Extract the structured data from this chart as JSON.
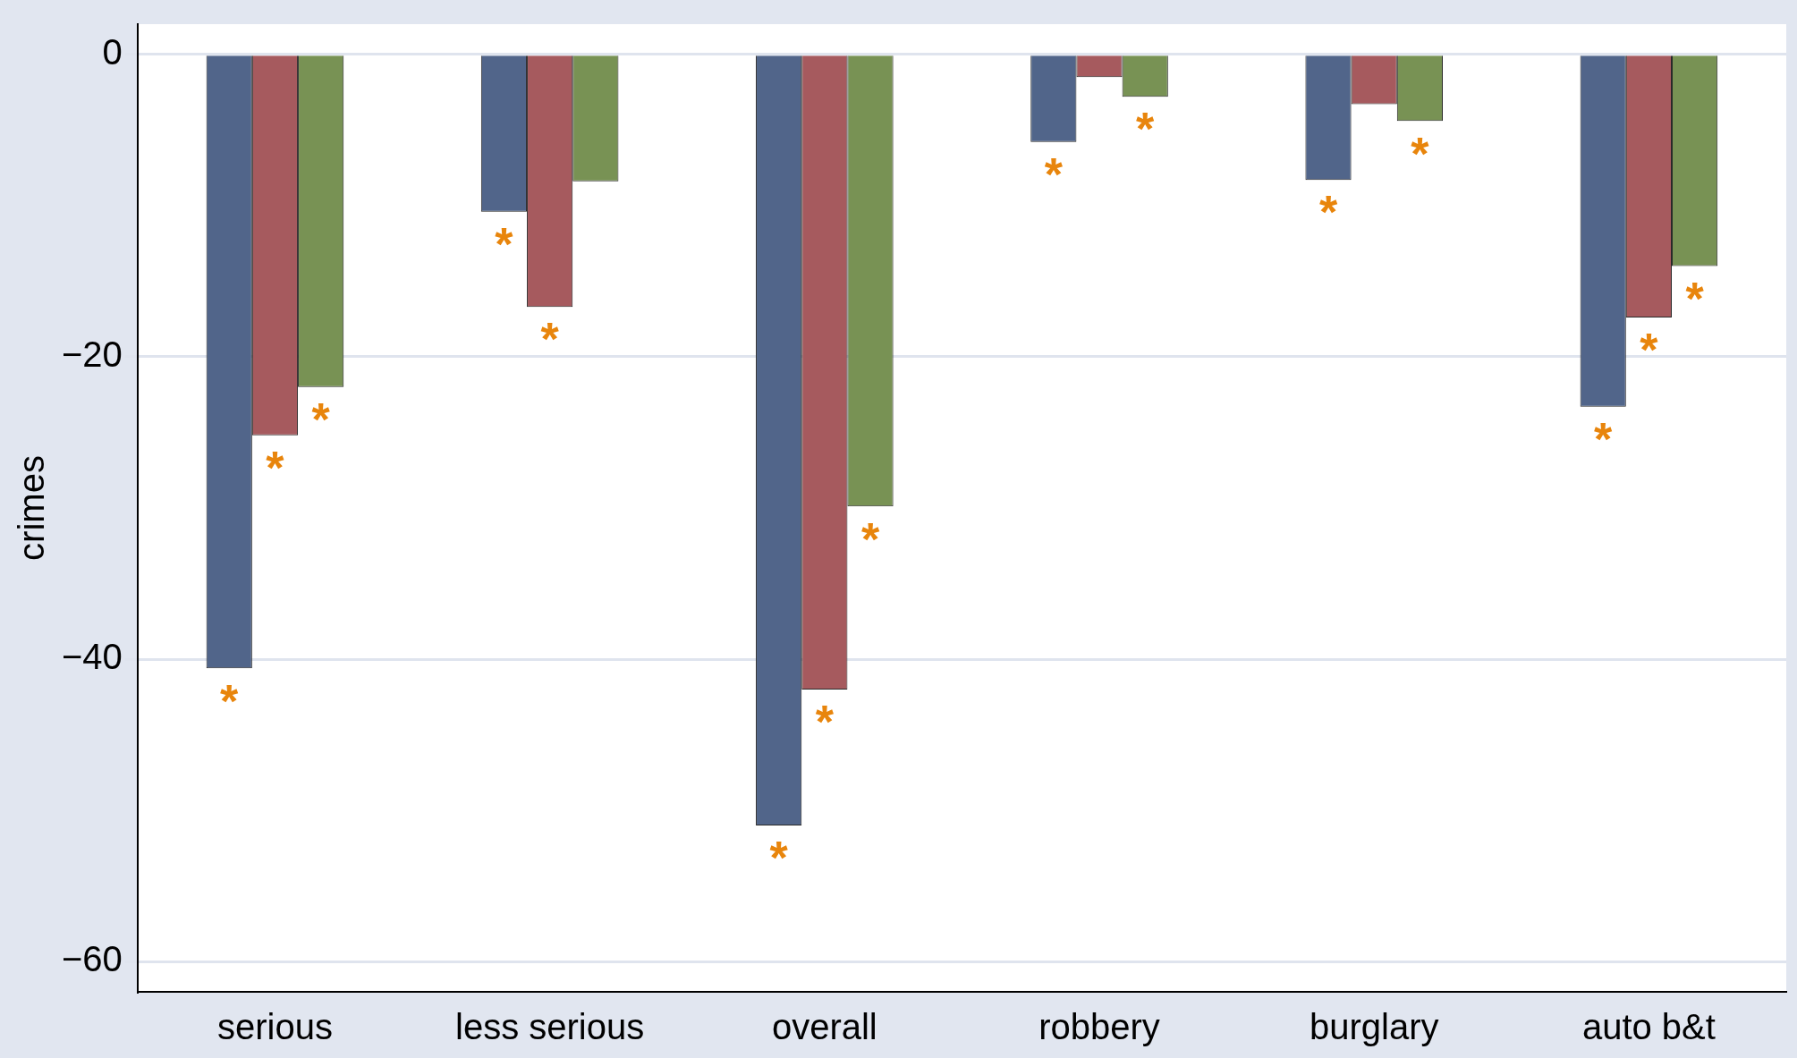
{
  "chart_data": {
    "type": "bar",
    "ylabel": "crimes",
    "categories": [
      "serious",
      "less serious",
      "overall",
      "robbery",
      "burglary",
      "auto b&t"
    ],
    "series": [
      {
        "color": "#51658a",
        "values": [
          -40.6,
          -10.4,
          -51.0,
          -5.8,
          -8.3,
          -23.3
        ],
        "value_labels": [
          "*",
          "*",
          "*",
          "*",
          "*",
          "*"
        ]
      },
      {
        "color": "#a65a5e",
        "values": [
          -25.2,
          -16.7,
          -42.0,
          -1.5,
          -3.3,
          -17.4
        ],
        "value_labels": [
          "*",
          "*",
          "*",
          null,
          null,
          "*"
        ]
      },
      {
        "color": "#789254",
        "values": [
          -22.0,
          -8.4,
          -29.9,
          -2.8,
          -4.4,
          -14.0
        ],
        "value_labels": [
          "*",
          null,
          "*",
          "*",
          "*",
          "*"
        ]
      }
    ],
    "ylim": [
      -62,
      2
    ],
    "yticks": [
      {
        "value": 0,
        "label": "0"
      },
      {
        "value": -20,
        "label": "−20"
      },
      {
        "value": -40,
        "label": "−40"
      },
      {
        "value": -60,
        "label": "−60"
      }
    ],
    "grid": "y",
    "legend": false
  }
}
